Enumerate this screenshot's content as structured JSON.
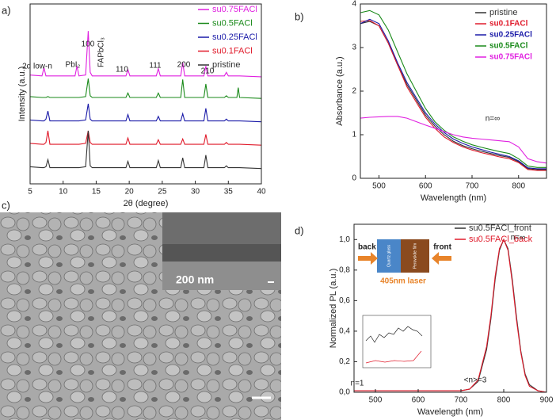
{
  "panel_labels": [
    "a)",
    "b)",
    "c)",
    "d)"
  ],
  "image": {
    "scale_label": "200 nm"
  },
  "chart_data": [
    {
      "type": "line",
      "xlabel": "2θ (degree)",
      "ylabel": "Intensity (a.u.)",
      "xlim": [
        5,
        40
      ],
      "xticks": [
        5,
        10,
        15,
        20,
        25,
        30,
        35,
        40
      ],
      "ylim": [
        0,
        10
      ],
      "legend": "upper right",
      "annotations": [
        "2d low-n",
        "PbI₂",
        "FAPbCl₃",
        "100",
        "110",
        "111",
        "200",
        "210"
      ],
      "x": [
        5,
        6.8,
        7.1,
        7.4,
        7.7,
        8.0,
        11.8,
        12.1,
        12.4,
        13.4,
        13.8,
        14.1,
        14.4,
        19.5,
        19.8,
        20.1,
        24.1,
        24.4,
        24.7,
        27.8,
        28.1,
        28.4,
        31.3,
        31.6,
        31.9,
        34.4,
        34.7,
        35,
        36.3,
        36.5,
        36.7,
        40
      ],
      "series": [
        {
          "name": "su0.75FACl",
          "color": "#e020e0",
          "values": [
            6.05,
            6.0,
            6.45,
            6.0,
            6.0,
            6.0,
            6.0,
            6.55,
            6.0,
            6.05,
            8.5,
            6.2,
            6.0,
            6.0,
            6.35,
            6.0,
            6.0,
            6.4,
            6.0,
            6.0,
            6.75,
            6.0,
            6.0,
            6.55,
            6.0,
            6.0,
            6.2,
            6.0,
            6.0,
            6.0,
            6.0,
            5.95
          ]
        },
        {
          "name": "su0.5FACl",
          "color": "#1a8a1a",
          "values": [
            4.85,
            4.8,
            4.8,
            4.8,
            4.85,
            4.8,
            4.8,
            4.8,
            4.8,
            4.85,
            5.85,
            4.9,
            4.8,
            4.8,
            5.05,
            4.8,
            4.8,
            5.05,
            4.8,
            4.8,
            5.8,
            4.8,
            4.8,
            5.55,
            4.8,
            4.8,
            4.9,
            4.8,
            4.8,
            5.35,
            4.8,
            4.75
          ]
        },
        {
          "name": "su0.25FACl",
          "color": "#1a1aa8",
          "values": [
            3.55,
            3.5,
            3.5,
            3.6,
            4.05,
            3.5,
            3.5,
            3.5,
            3.5,
            3.55,
            4.45,
            3.6,
            3.5,
            3.5,
            3.85,
            3.5,
            3.5,
            3.75,
            3.5,
            3.5,
            3.9,
            3.5,
            3.5,
            4.2,
            3.5,
            3.5,
            3.6,
            3.5,
            3.5,
            3.5,
            3.5,
            3.45
          ]
        },
        {
          "name": "su0.1FACl",
          "color": "#e01a2a",
          "values": [
            2.25,
            2.2,
            2.2,
            2.3,
            2.95,
            2.2,
            2.2,
            2.2,
            2.2,
            2.25,
            2.95,
            2.3,
            2.2,
            2.2,
            2.55,
            2.2,
            2.2,
            2.45,
            2.2,
            2.2,
            2.5,
            2.2,
            2.2,
            2.75,
            2.2,
            2.2,
            2.3,
            2.2,
            2.2,
            2.2,
            2.2,
            2.15
          ]
        },
        {
          "name": "pristine",
          "color": "#333333",
          "values": [
            0.95,
            0.9,
            0.9,
            0.95,
            1.35,
            0.9,
            0.9,
            0.9,
            0.9,
            0.95,
            2.95,
            1.0,
            0.9,
            0.9,
            1.25,
            0.9,
            0.9,
            1.3,
            0.9,
            0.9,
            1.45,
            0.9,
            0.9,
            1.6,
            0.9,
            0.9,
            1.0,
            0.9,
            0.9,
            0.9,
            0.9,
            0.85
          ]
        }
      ]
    },
    {
      "type": "line",
      "xlabel": "Wavelength (nm)",
      "ylabel": "Absorbance (a.u.)",
      "xlim": [
        460,
        860
      ],
      "xticks": [
        500,
        600,
        700,
        800
      ],
      "ylim": [
        0,
        4
      ],
      "yticks": [
        0,
        1,
        2,
        3,
        4
      ],
      "legend": "upper right",
      "annotations": [
        "n=∞"
      ],
      "x": [
        460,
        480,
        500,
        520,
        540,
        560,
        580,
        600,
        620,
        640,
        660,
        680,
        700,
        720,
        740,
        760,
        780,
        800,
        820,
        840,
        860
      ],
      "series": [
        {
          "name": "pristine",
          "color": "#333333",
          "values": [
            3.55,
            3.6,
            3.5,
            3.1,
            2.6,
            2.15,
            1.8,
            1.45,
            1.2,
            1.0,
            0.85,
            0.75,
            0.68,
            0.62,
            0.57,
            0.52,
            0.48,
            0.38,
            0.22,
            0.2,
            0.2
          ]
        },
        {
          "name": "su0.1FACl",
          "color": "#e01a2a",
          "values": [
            3.6,
            3.62,
            3.5,
            3.1,
            2.6,
            2.1,
            1.75,
            1.4,
            1.15,
            0.95,
            0.82,
            0.72,
            0.65,
            0.59,
            0.54,
            0.49,
            0.45,
            0.36,
            0.2,
            0.18,
            0.18
          ]
        },
        {
          "name": "su0.25FACl",
          "color": "#1a1aa8",
          "values": [
            3.55,
            3.65,
            3.55,
            3.15,
            2.65,
            2.2,
            1.85,
            1.5,
            1.25,
            1.05,
            0.9,
            0.8,
            0.72,
            0.66,
            0.6,
            0.55,
            0.5,
            0.4,
            0.24,
            0.22,
            0.22
          ]
        },
        {
          "name": "su0.5FACl",
          "color": "#1a8a1a",
          "values": [
            3.8,
            3.85,
            3.75,
            3.4,
            2.9,
            2.4,
            2.0,
            1.6,
            1.3,
            1.1,
            0.95,
            0.85,
            0.77,
            0.71,
            0.66,
            0.61,
            0.57,
            0.45,
            0.28,
            0.25,
            0.25
          ]
        },
        {
          "name": "su0.75FACl",
          "color": "#e020e0",
          "values": [
            1.38,
            1.4,
            1.41,
            1.42,
            1.42,
            1.38,
            1.3,
            1.22,
            1.15,
            1.07,
            1.0,
            0.95,
            0.92,
            0.9,
            0.88,
            0.86,
            0.84,
            0.72,
            0.45,
            0.38,
            0.35
          ]
        }
      ]
    },
    {
      "type": "line",
      "xlabel": "Wavelength (nm)",
      "ylabel": "Normalized PL (a.u.)",
      "xlim": [
        450,
        900
      ],
      "xticks": [
        500,
        600,
        700,
        800,
        900
      ],
      "ylim": [
        0,
        1.1
      ],
      "yticks": [
        {
          "value": 0,
          "label": "0,0"
        },
        {
          "value": 0.2,
          "label": "0,2"
        },
        {
          "value": 0.4,
          "label": "0,4"
        },
        {
          "value": 0.6,
          "label": "0,6"
        },
        {
          "value": 0.8,
          "label": "0,8"
        },
        {
          "value": 1.0,
          "label": "1,0"
        }
      ],
      "legend": "upper right",
      "annotations": [
        "n=∞",
        "n=1",
        "<n>=3"
      ],
      "inset_labels": [
        "back",
        "front",
        "Quartz glass",
        "Perovskite film",
        "405nm laser"
      ],
      "x": [
        450,
        500,
        550,
        600,
        650,
        700,
        720,
        740,
        760,
        770,
        780,
        790,
        800,
        810,
        820,
        830,
        840,
        850,
        860,
        880,
        900
      ],
      "series": [
        {
          "name": "su0.5FACl_front",
          "color": "#333333",
          "values": [
            0.01,
            0.01,
            0.01,
            0.01,
            0.01,
            0.01,
            0.02,
            0.07,
            0.28,
            0.48,
            0.74,
            0.93,
            1.0,
            0.94,
            0.74,
            0.49,
            0.27,
            0.12,
            0.05,
            0.01,
            0.0
          ]
        },
        {
          "name": "su0.5FACl_back",
          "color": "#e01a2a",
          "values": [
            0.01,
            0.01,
            0.01,
            0.01,
            0.01,
            0.01,
            0.02,
            0.08,
            0.3,
            0.5,
            0.76,
            0.94,
            1.0,
            0.93,
            0.72,
            0.47,
            0.26,
            0.11,
            0.04,
            0.01,
            0.0
          ]
        }
      ]
    }
  ]
}
